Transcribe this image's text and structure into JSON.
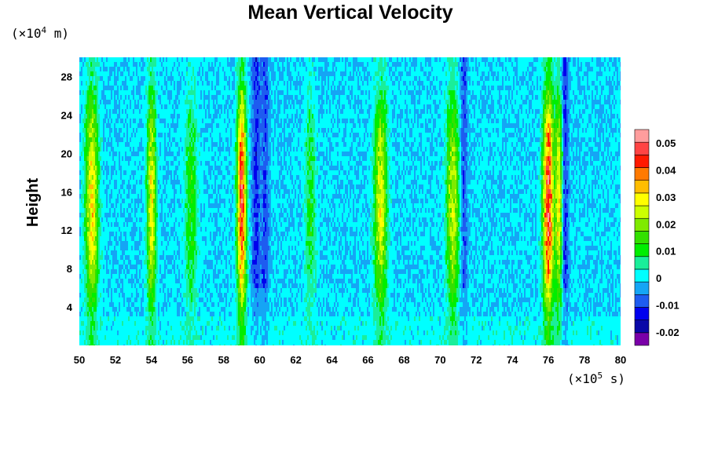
{
  "chart_data": {
    "type": "heatmap",
    "title": "Mean Vertical Velocity",
    "ylabel": "Height",
    "xlabel": "",
    "y_unit": {
      "prefix": "(×10",
      "exp": "4",
      "suffix": " m)"
    },
    "x_unit": {
      "prefix": "(×10",
      "exp": "5",
      "suffix": " s)"
    },
    "xlim": [
      50,
      80
    ],
    "ylim": [
      0,
      30
    ],
    "x_ticks": [
      50,
      52,
      54,
      56,
      58,
      60,
      62,
      64,
      66,
      68,
      70,
      72,
      74,
      76,
      78,
      80
    ],
    "y_ticks": [
      4,
      8,
      12,
      16,
      20,
      24,
      28
    ],
    "value_range": [
      -0.025,
      0.055
    ],
    "colorbar": {
      "levels": [
        -0.025,
        -0.02,
        -0.015,
        -0.01,
        -0.005,
        0,
        0.005,
        0.01,
        0.015,
        0.02,
        0.025,
        0.03,
        0.035,
        0.04,
        0.045,
        0.05,
        0.055
      ],
      "colors": [
        "#7a00a8",
        "#0a08a8",
        "#0000ee",
        "#1e5cf0",
        "#15a5f5",
        "#00ffff",
        "#1aee9a",
        "#00ee00",
        "#33e000",
        "#7fea00",
        "#ccff00",
        "#ffff00",
        "#ffbd00",
        "#ff7a00",
        "#ff1a00",
        "#ff4444",
        "#ff9d9d"
      ],
      "tick_labels": [
        "-0.02",
        "-0.01",
        "0",
        "0.01",
        "0.02",
        "0.03",
        "0.04",
        "0.05"
      ],
      "tick_values": [
        -0.02,
        -0.01,
        0,
        0.01,
        0.02,
        0.03,
        0.04,
        0.05
      ]
    },
    "updraft_bands": [
      {
        "x": 50.7,
        "peak": 0.032,
        "width": 0.35
      },
      {
        "x": 54.0,
        "peak": 0.03,
        "width": 0.25
      },
      {
        "x": 56.2,
        "peak": 0.014,
        "width": 0.35
      },
      {
        "x": 59.0,
        "peak": 0.048,
        "width": 0.25
      },
      {
        "x": 62.8,
        "peak": 0.012,
        "width": 0.3
      },
      {
        "x": 66.7,
        "peak": 0.028,
        "width": 0.35
      },
      {
        "x": 70.7,
        "peak": 0.026,
        "width": 0.35
      },
      {
        "x": 76.0,
        "peak": 0.05,
        "width": 0.3
      },
      {
        "x": 76.6,
        "peak": 0.03,
        "width": 0.2
      }
    ],
    "downdraft_bands": [
      {
        "x": 59.8,
        "peak": -0.012,
        "width": 0.25
      },
      {
        "x": 60.3,
        "peak": -0.01,
        "width": 0.2
      },
      {
        "x": 71.3,
        "peak": -0.01,
        "width": 0.2
      },
      {
        "x": 76.9,
        "peak": -0.014,
        "width": 0.2
      }
    ]
  }
}
